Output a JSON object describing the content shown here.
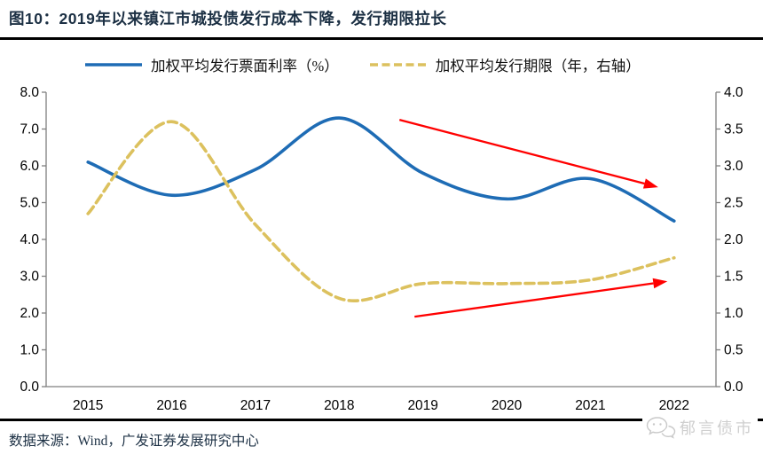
{
  "header": {
    "title": "图10：2019年以来镇江市城投债发行成本下降，发行期限拉长"
  },
  "legend": [
    {
      "label": "加权平均发行票面利率（%）",
      "color": "#1e6cb5",
      "style": "solid"
    },
    {
      "label": "加权平均发行期限（年，右轴）",
      "color": "#dcc15e",
      "style": "dashed"
    }
  ],
  "footer": {
    "source": "数据来源：Wind，广发证券发展研究中心",
    "watermark": "郁言债市"
  },
  "chart_data": {
    "type": "line",
    "categories": [
      "2015",
      "2016",
      "2017",
      "2018",
      "2019",
      "2020",
      "2021",
      "2022"
    ],
    "series": [
      {
        "name": "加权平均发行票面利率（%）",
        "axis": "left",
        "color": "#1e6cb5",
        "dash": false,
        "values": [
          6.1,
          5.2,
          5.9,
          7.3,
          5.8,
          5.1,
          5.65,
          4.5
        ]
      },
      {
        "name": "加权平均发行期限（年，右轴）",
        "axis": "right",
        "color": "#dcc15e",
        "dash": true,
        "values": [
          2.35,
          3.6,
          2.2,
          1.2,
          1.4,
          1.4,
          1.45,
          1.75
        ]
      }
    ],
    "left_axis": {
      "min": 0,
      "max": 8,
      "step": 1,
      "ticks": [
        "8.0",
        "7.0",
        "6.0",
        "5.0",
        "4.0",
        "3.0",
        "2.0",
        "1.0",
        "0.0"
      ]
    },
    "right_axis": {
      "min": 0,
      "max": 4,
      "step": 0.5,
      "ticks": [
        "4.0",
        "3.5",
        "3.0",
        "2.5",
        "2.0",
        "1.5",
        "1.0",
        "0.5",
        "0.0"
      ]
    },
    "grid": false,
    "legend_position": "top",
    "annotations": [
      {
        "type": "arrow",
        "color": "#ff0000",
        "axis": "left",
        "from": {
          "x": 3.72,
          "y": 7.25
        },
        "to": {
          "x": 6.81,
          "y": 5.42
        }
      },
      {
        "type": "arrow",
        "color": "#ff0000",
        "axis": "right",
        "from": {
          "x": 3.9,
          "y": 0.95
        },
        "to": {
          "x": 6.92,
          "y": 1.43
        }
      }
    ]
  }
}
